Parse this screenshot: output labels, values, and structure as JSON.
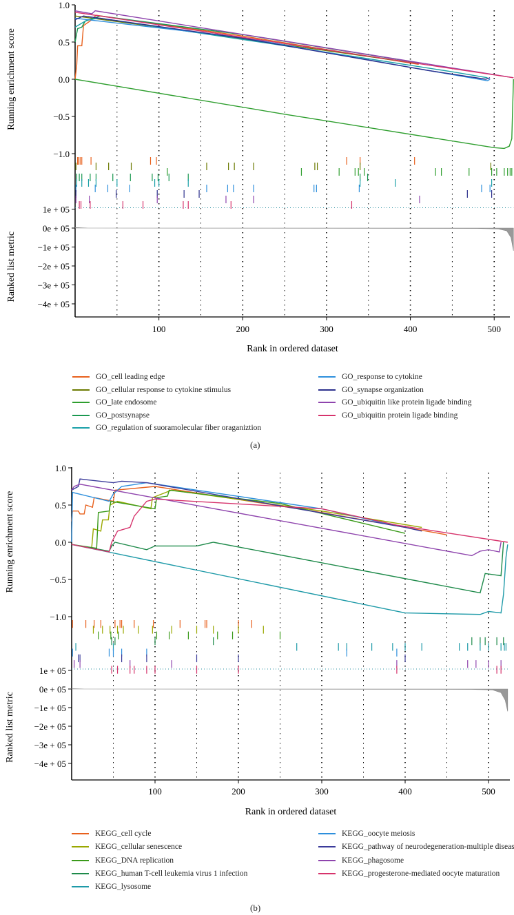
{
  "chart_data": [
    {
      "panel_label": "(a)",
      "type": "line",
      "ylabel_top": "Running enrichment score",
      "ylabel_bottom": "Ranked list metric",
      "xlabel": "Rank in ordered dataset",
      "xticks": [
        "100",
        "200",
        "300",
        "400",
        "500"
      ],
      "yticks": [
        "1.0",
        "0.5",
        "0.0",
        "−0.5",
        "−1.0"
      ],
      "metric_ticks": [
        "1e + 05",
        "0e + 05",
        "−1e + 05",
        "−2e + 05",
        "−3e + 05",
        "−4e + 05"
      ],
      "ylim": [
        -1.0,
        1.0
      ],
      "xlim": [
        0,
        523
      ],
      "series": [
        {
          "name": "GO_cell leading edge",
          "color": "#E8601C",
          "points": [
            [
              0,
              0
            ],
            [
              2,
              0.2
            ],
            [
              3,
              0.45
            ],
            [
              8,
              0.45
            ],
            [
              10,
              0.72
            ],
            [
              20,
              0.8
            ],
            [
              25,
              0.86
            ],
            [
              200,
              0.58
            ],
            [
              410,
              0.2
            ]
          ],
          "hits": [
            3,
            4,
            6,
            8,
            19,
            90,
            97,
            324,
            340,
            405
          ]
        },
        {
          "name": "GO_cellular response to cytokine stimulus",
          "color": "#6B7A00",
          "points": [
            [
              0,
              0.85
            ],
            [
              100,
              0.7
            ],
            [
              410,
              0.21
            ]
          ],
          "hits": [
            1,
            25,
            40,
            67,
            157,
            183,
            190,
            213,
            286,
            289,
            340,
            496
          ]
        },
        {
          "name": "GO_late endosome",
          "color": "#2E9E2E",
          "points": [
            [
              0,
              0
            ],
            [
              250,
              -0.47
            ],
            [
              500,
              -0.92
            ],
            [
              512,
              -0.93
            ],
            [
              518,
              -0.9
            ],
            [
              521,
              -0.8
            ],
            [
              523,
              0.0
            ]
          ],
          "hits": [
            110,
            270,
            315,
            334,
            338,
            345,
            430,
            437,
            470,
            497,
            503,
            512,
            516,
            519,
            521
          ]
        },
        {
          "name": "GO_postsynapse",
          "color": "#1A9850",
          "points": [
            [
              0,
              0.5
            ],
            [
              3,
              0.68
            ],
            [
              8,
              0.7
            ],
            [
              12,
              0.78
            ],
            [
              30,
              0.85
            ],
            [
              200,
              0.6
            ],
            [
              410,
              0.22
            ]
          ],
          "hits": [
            2,
            5,
            8,
            18,
            25,
            45,
            66,
            92,
            99,
            112,
            135,
            340,
            349
          ]
        },
        {
          "name": "GO_regulation of suoramolecular fiber oraganiztion",
          "color": "#1AA0A8",
          "points": [
            [
              0,
              0.7
            ],
            [
              15,
              0.8
            ],
            [
              30,
              0.82
            ],
            [
              250,
              0.45
            ],
            [
              450,
              0.1
            ],
            [
              492,
              0.02
            ]
          ],
          "hits": [
            2,
            8,
            16,
            25,
            50,
            95,
            100,
            135,
            340,
            382,
            497
          ]
        },
        {
          "name": "GO_response to cytokine",
          "color": "#2D8FDC",
          "points": [
            [
              0,
              0.82
            ],
            [
              200,
              0.56
            ],
            [
              400,
              0.16
            ],
            [
              492,
              -0.02
            ],
            [
              495,
              0.0
            ]
          ],
          "hits": [
            1,
            24,
            39,
            65,
            157,
            182,
            189,
            213,
            285,
            288,
            339,
            485,
            495
          ]
        },
        {
          "name": "GO_synapse organization",
          "color": "#2B2F8C",
          "points": [
            [
              0,
              0.8
            ],
            [
              10,
              0.85
            ],
            [
              200,
              0.55
            ],
            [
              420,
              0.12
            ],
            [
              490,
              0.0
            ],
            [
              495,
              0.02
            ]
          ],
          "hits": [
            1,
            49,
            98,
            130,
            148,
            468,
            497
          ]
        },
        {
          "name": "GO_ubiquitin like protein ligade binding",
          "color": "#8E44AD",
          "points": [
            [
              0,
              0.92
            ],
            [
              20,
              0.88
            ],
            [
              24,
              0.92
            ],
            [
              523,
              0.02
            ]
          ],
          "hits": [
            1,
            17,
            98,
            180,
            213,
            411
          ]
        },
        {
          "name": "GO_ubiquitin protein ligade binding",
          "color": "#D6336C",
          "points": [
            [
              0,
              0.9
            ],
            [
              523,
              0.02
            ]
          ],
          "hits": [
            5,
            7,
            18,
            57,
            81,
            129,
            135,
            186,
            330
          ]
        }
      ],
      "metric": [
        [
          0,
          0.03
        ],
        [
          15,
          0.0
        ],
        [
          480,
          -0.02
        ],
        [
          505,
          -0.05
        ],
        [
          515,
          -0.15
        ],
        [
          520,
          -0.5
        ],
        [
          523,
          -1.2
        ]
      ]
    },
    {
      "panel_label": "(b)",
      "type": "line",
      "ylabel_top": "Running enrichment score",
      "ylabel_bottom": "Ranked list metric",
      "xlabel": "Rank in ordered dataset",
      "xticks": [
        "100",
        "200",
        "300",
        "400",
        "500"
      ],
      "yticks": [
        "1.0",
        "0.5",
        "0.0",
        "−0.5",
        "−1.0"
      ],
      "metric_ticks": [
        "1e + 05",
        "0e + 05",
        "−1e + 05",
        "−2e + 05",
        "−3e + 05",
        "−4e + 05"
      ],
      "ylim": [
        -1.0,
        1.0
      ],
      "xlim": [
        0,
        523
      ],
      "series": [
        {
          "name": "KEGG_cell cycle",
          "color": "#E8601C",
          "points": [
            [
              0,
              0.28
            ],
            [
              1,
              0.42
            ],
            [
              8,
              0.42
            ],
            [
              10,
              0.38
            ],
            [
              15,
              0.38
            ],
            [
              17,
              0.5
            ],
            [
              25,
              0.47
            ],
            [
              27,
              0.6
            ],
            [
              50,
              0.55
            ],
            [
              52,
              0.7
            ],
            [
              100,
              0.75
            ],
            [
              300,
              0.4
            ],
            [
              450,
              0.1
            ]
          ],
          "hits": [
            1,
            17,
            27,
            35,
            52,
            58,
            60,
            75,
            98,
            130,
            160,
            162,
            200,
            216
          ]
        },
        {
          "name": "KEGG_cellular senescence",
          "color": "#9AA800",
          "points": [
            [
              24,
              -0.08
            ],
            [
              26,
              0.18
            ],
            [
              35,
              0.15
            ],
            [
              37,
              0.3
            ],
            [
              44,
              0.3
            ],
            [
              46,
              0.5
            ],
            [
              55,
              0.55
            ],
            [
              95,
              0.45
            ],
            [
              97,
              0.6
            ],
            [
              120,
              0.7
            ],
            [
              300,
              0.42
            ],
            [
              420,
              0.2
            ]
          ],
          "hits": [
            26,
            37,
            46,
            55,
            62,
            80,
            97,
            120,
            150,
            170,
            200,
            230
          ]
        },
        {
          "name": "KEGG_DNA replication",
          "color": "#3A9A1A",
          "points": [
            [
              0,
              -0.03
            ],
            [
              30,
              -0.08
            ],
            [
              32,
              0.4
            ],
            [
              45,
              0.42
            ],
            [
              47,
              0.55
            ],
            [
              100,
              0.45
            ],
            [
              102,
              0.6
            ],
            [
              115,
              0.62
            ],
            [
              117,
              0.7
            ],
            [
              250,
              0.52
            ],
            [
              400,
              0.12
            ]
          ],
          "hits": [
            32,
            47,
            56,
            102,
            117,
            140,
            175,
            193,
            250
          ]
        },
        {
          "name": "KEGG_human T-cell leukemia virus 1 infection",
          "color": "#1E8A4A",
          "points": [
            [
              0,
              -0.03
            ],
            [
              45,
              -0.12
            ],
            [
              48,
              -0.05
            ],
            [
              52,
              0.0
            ],
            [
              90,
              -0.1
            ],
            [
              100,
              -0.05
            ],
            [
              150,
              -0.05
            ],
            [
              170,
              0.0
            ],
            [
              490,
              -0.68
            ],
            [
              493,
              -0.55
            ],
            [
              496,
              -0.42
            ],
            [
              515,
              -0.45
            ],
            [
              518,
              0.0
            ]
          ],
          "hits": [
            48,
            52,
            100,
            170,
            480,
            490,
            496,
            510,
            518
          ]
        },
        {
          "name": "KEGG_lysosome",
          "color": "#1E9AA8",
          "points": [
            [
              0,
              -0.03
            ],
            [
              400,
              -0.95
            ],
            [
              490,
              -0.97
            ],
            [
              500,
              -0.93
            ],
            [
              515,
              -0.95
            ],
            [
              518,
              -0.7
            ],
            [
              521,
              -0.2
            ],
            [
              523,
              -0.03
            ]
          ],
          "hits": [
            5,
            50,
            270,
            320,
            330,
            360,
            385,
            400,
            420,
            465,
            475,
            490,
            500,
            515,
            519,
            521
          ]
        },
        {
          "name": "KEGG_oocyte meiosis",
          "color": "#2D8FDC",
          "points": [
            [
              0,
              0
            ],
            [
              1,
              0.67
            ],
            [
              45,
              0.55
            ],
            [
              50,
              0.65
            ],
            [
              60,
              0.75
            ],
            [
              90,
              0.8
            ],
            [
              300,
              0.45
            ],
            [
              390,
              0.22
            ]
          ],
          "hits": [
            1,
            45,
            50,
            60,
            90,
            330,
            390
          ]
        },
        {
          "name": "KEGG_pathway of neurodegeneration-multiple disease",
          "color": "#3B3B9A",
          "points": [
            [
              0,
              0.7
            ],
            [
              8,
              0.75
            ],
            [
              10,
              0.85
            ],
            [
              50,
              0.8
            ],
            [
              60,
              0.82
            ],
            [
              90,
              0.8
            ],
            [
              400,
              0.2
            ],
            [
              420,
              0.15
            ]
          ],
          "hits": [
            8,
            10,
            60,
            90,
            150,
            200,
            400
          ]
        },
        {
          "name": "KEGG_phagosome",
          "color": "#8E44AD",
          "points": [
            [
              0,
              0.7
            ],
            [
              3,
              0.75
            ],
            [
              10,
              0.78
            ],
            [
              480,
              -0.18
            ],
            [
              490,
              -0.12
            ],
            [
              500,
              -0.1
            ],
            [
              513,
              -0.13
            ],
            [
              515,
              0.0
            ]
          ],
          "hits": [
            3,
            10,
            70,
            120,
            390,
            475,
            485,
            500,
            515
          ]
        },
        {
          "name": "KEGG_progesterone-mediated oocyte maturation",
          "color": "#D6336C",
          "points": [
            [
              0,
              -0.03
            ],
            [
              45,
              -0.13
            ],
            [
              48,
              0.0
            ],
            [
              55,
              0.15
            ],
            [
              70,
              0.2
            ],
            [
              75,
              0.35
            ],
            [
              90,
              0.55
            ],
            [
              100,
              0.58
            ],
            [
              300,
              0.45
            ],
            [
              390,
              0.23
            ],
            [
              523,
              0.0
            ]
          ],
          "hits": [
            48,
            55,
            70,
            75,
            90,
            100,
            150,
            200,
            390,
            510,
            515
          ]
        }
      ],
      "metric": [
        [
          0,
          0.02
        ],
        [
          15,
          0.0
        ],
        [
          480,
          -0.02
        ],
        [
          505,
          -0.05
        ],
        [
          515,
          -0.2
        ],
        [
          520,
          -0.6
        ],
        [
          523,
          -1.2
        ]
      ]
    }
  ]
}
